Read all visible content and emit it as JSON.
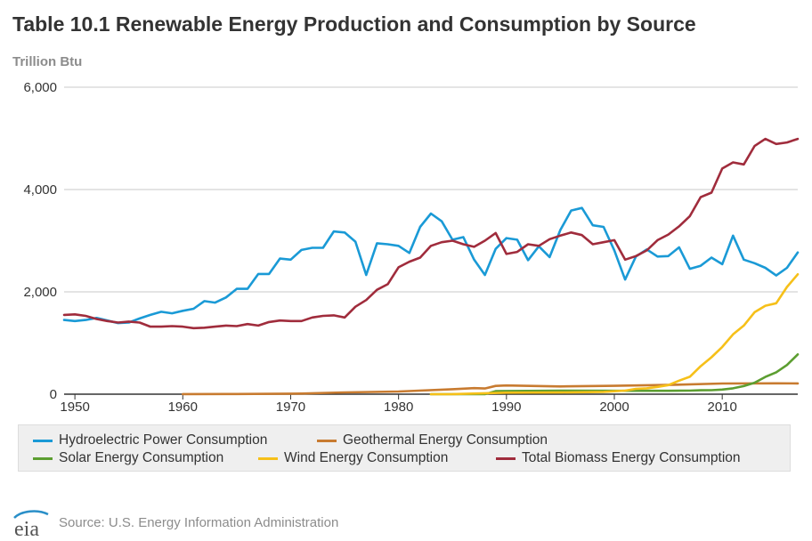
{
  "header": {
    "title": "Table 10.1 Renewable Energy Production and Consumption by Source",
    "unit": "Trillion Btu"
  },
  "footer": {
    "source": "Source: U.S. Energy Information Administration",
    "logo_text": "eia"
  },
  "chart_data": {
    "type": "line",
    "title": "Table 10.1 Renewable Energy Production and Consumption by Source",
    "ylabel": "Trillion Btu",
    "xlabel": "",
    "xlim": [
      1949,
      2017
    ],
    "ylim": [
      0,
      6000
    ],
    "x_ticks": [
      1950,
      1960,
      1970,
      1980,
      1990,
      2000,
      2010
    ],
    "x_tick_labels": [
      "1950",
      "1960",
      "1970",
      "1980",
      "1990",
      "2000",
      "2010"
    ],
    "y_ticks": [
      0,
      2000,
      4000,
      6000
    ],
    "y_tick_labels": [
      "0",
      "2,000",
      "4,000",
      "6,000"
    ],
    "grid": true,
    "legend_position": "bottom",
    "series": [
      {
        "name": "Hydroelectric Power Consumption",
        "color": "#1a9ad6",
        "x": [
          1949,
          1950,
          1951,
          1952,
          1953,
          1954,
          1955,
          1956,
          1957,
          1958,
          1959,
          1960,
          1961,
          1962,
          1963,
          1964,
          1965,
          1966,
          1967,
          1968,
          1969,
          1970,
          1971,
          1972,
          1973,
          1974,
          1975,
          1976,
          1977,
          1978,
          1979,
          1980,
          1981,
          1982,
          1983,
          1984,
          1985,
          1986,
          1987,
          1988,
          1989,
          1990,
          1991,
          1992,
          1993,
          1994,
          1995,
          1996,
          1997,
          1998,
          1999,
          2000,
          2001,
          2002,
          2003,
          2004,
          2005,
          2006,
          2007,
          2008,
          2009,
          2010,
          2011,
          2012,
          2013,
          2014,
          2015,
          2016,
          2017
        ],
        "y": [
          1450,
          1430,
          1450,
          1490,
          1440,
          1390,
          1400,
          1480,
          1550,
          1610,
          1580,
          1630,
          1670,
          1820,
          1790,
          1890,
          2060,
          2060,
          2350,
          2350,
          2650,
          2630,
          2820,
          2860,
          2860,
          3180,
          3160,
          2980,
          2330,
          2950,
          2930,
          2900,
          2760,
          3270,
          3530,
          3380,
          3020,
          3070,
          2630,
          2330,
          2840,
          3050,
          3020,
          2620,
          2890,
          2680,
          3210,
          3590,
          3640,
          3300,
          3270,
          2810,
          2240,
          2690,
          2830,
          2690,
          2700,
          2870,
          2450,
          2510,
          2670,
          2540,
          3100,
          2630,
          2560,
          2470,
          2320,
          2470,
          2770
        ]
      },
      {
        "name": "Geothermal Energy Consumption",
        "color": "#c87b30",
        "x": [
          1960,
          1965,
          1970,
          1971,
          1975,
          1980,
          1985,
          1987,
          1988,
          1989,
          1990,
          1995,
          2000,
          2005,
          2010,
          2015,
          2017
        ],
        "y": [
          1,
          4,
          11,
          12,
          34,
          53,
          97,
          118,
          112,
          162,
          171,
          152,
          164,
          181,
          208,
          212,
          210
        ]
      },
      {
        "name": "Solar Energy Consumption",
        "color": "#5c9e31",
        "x": [
          1983,
          1985,
          1988,
          1989,
          1995,
          2000,
          2005,
          2007,
          2008,
          2009,
          2010,
          2011,
          2012,
          2013,
          2014,
          2015,
          2016,
          2017
        ],
        "y": [
          0,
          0,
          0,
          59,
          69,
          66,
          66,
          70,
          76,
          79,
          91,
          114,
          159,
          225,
          337,
          427,
          570,
          777
        ]
      },
      {
        "name": "Wind Energy Consumption",
        "color": "#f6c019",
        "x": [
          1983,
          1985,
          1990,
          1995,
          1999,
          2000,
          2001,
          2002,
          2003,
          2004,
          2005,
          2006,
          2007,
          2008,
          2009,
          2010,
          2011,
          2012,
          2013,
          2014,
          2015,
          2016,
          2017
        ],
        "y": [
          0,
          1,
          29,
          33,
          46,
          57,
          70,
          105,
          115,
          142,
          178,
          264,
          341,
          546,
          721,
          923,
          1168,
          1340,
          1601,
          1728,
          1777,
          2096,
          2343
        ]
      },
      {
        "name": "Total Biomass Energy Consumption",
        "color": "#a02c3c",
        "x": [
          1949,
          1950,
          1951,
          1952,
          1953,
          1954,
          1955,
          1956,
          1957,
          1958,
          1959,
          1960,
          1961,
          1962,
          1963,
          1964,
          1965,
          1966,
          1967,
          1968,
          1969,
          1970,
          1971,
          1972,
          1973,
          1974,
          1975,
          1976,
          1977,
          1978,
          1979,
          1980,
          1981,
          1982,
          1983,
          1984,
          1985,
          1986,
          1987,
          1988,
          1989,
          1990,
          1991,
          1992,
          1993,
          1994,
          1995,
          1996,
          1997,
          1998,
          1999,
          2000,
          2001,
          2002,
          2003,
          2004,
          2005,
          2006,
          2007,
          2008,
          2009,
          2010,
          2011,
          2012,
          2013,
          2014,
          2015,
          2016,
          2017
        ],
        "y": [
          1550,
          1560,
          1530,
          1470,
          1430,
          1400,
          1420,
          1400,
          1320,
          1320,
          1330,
          1320,
          1290,
          1300,
          1320,
          1340,
          1330,
          1370,
          1340,
          1410,
          1440,
          1430,
          1430,
          1500,
          1530,
          1540,
          1500,
          1710,
          1840,
          2040,
          2150,
          2480,
          2590,
          2670,
          2900,
          2970,
          3000,
          2930,
          2880,
          3000,
          3150,
          2740,
          2780,
          2930,
          2900,
          3030,
          3100,
          3160,
          3110,
          2930,
          2970,
          3010,
          2630,
          2700,
          2810,
          3010,
          3120,
          3280,
          3480,
          3850,
          3940,
          4410,
          4530,
          4490,
          4850,
          4990,
          4890,
          4920,
          4990
        ]
      }
    ]
  }
}
